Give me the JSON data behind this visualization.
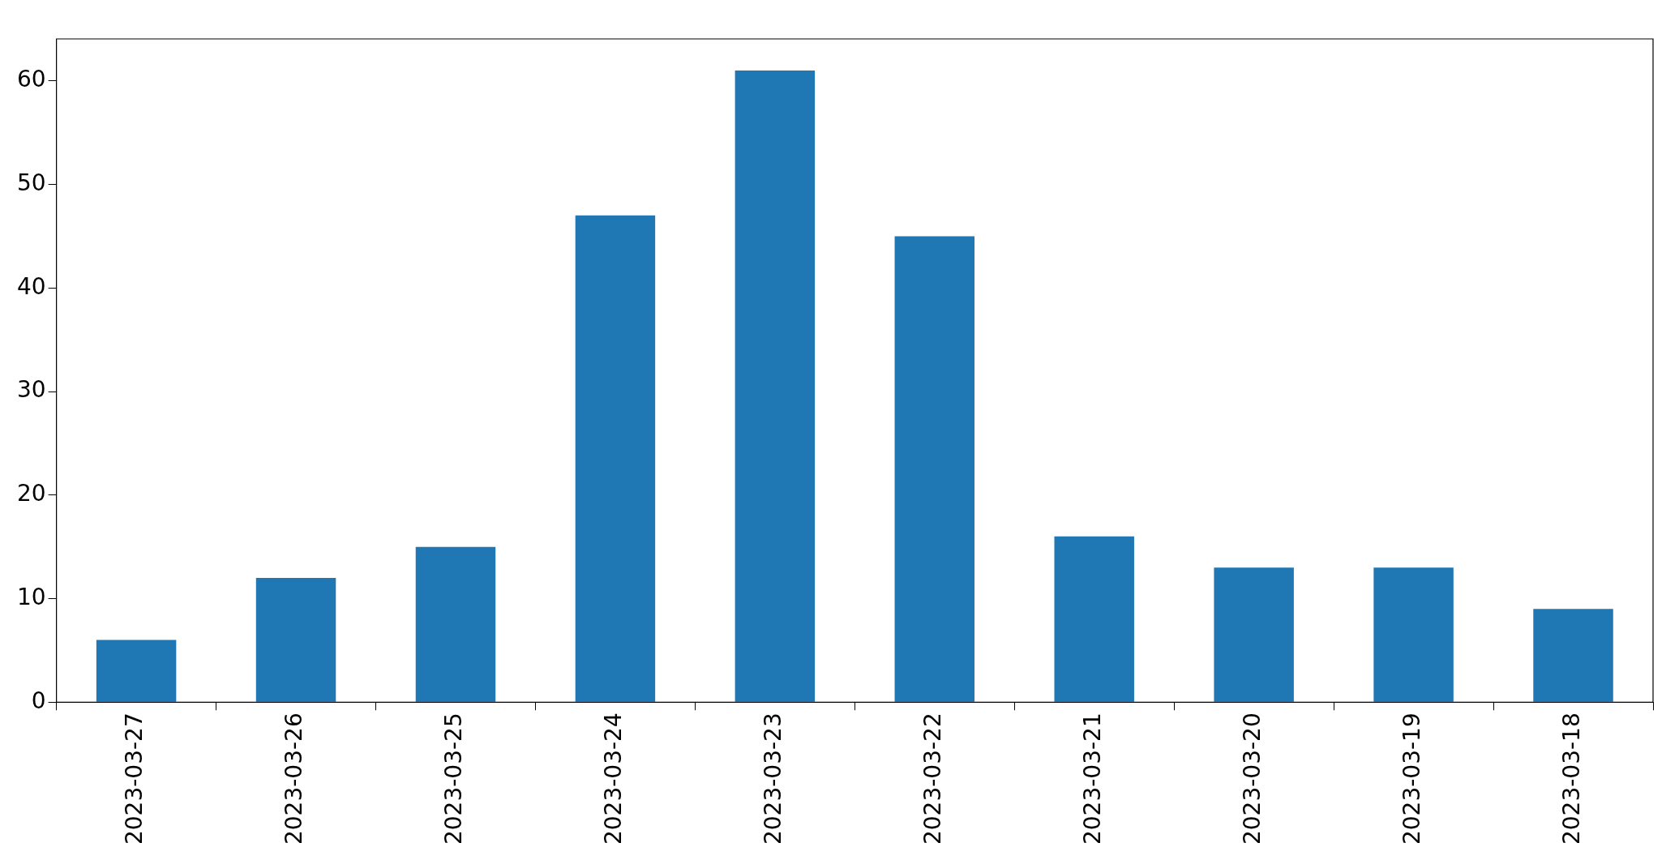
{
  "chart_data": {
    "type": "bar",
    "categories": [
      "2023-03-27",
      "2023-03-26",
      "2023-03-25",
      "2023-03-24",
      "2023-03-23",
      "2023-03-22",
      "2023-03-21",
      "2023-03-20",
      "2023-03-19",
      "2023-03-18"
    ],
    "values": [
      6,
      12,
      15,
      47,
      61,
      45,
      16,
      13,
      13,
      9
    ],
    "color": "#1f77b4",
    "ylim": [
      0,
      64.05
    ],
    "yticks": [
      0,
      10,
      20,
      30,
      40,
      50,
      60
    ],
    "grid": false,
    "legend": false
  }
}
